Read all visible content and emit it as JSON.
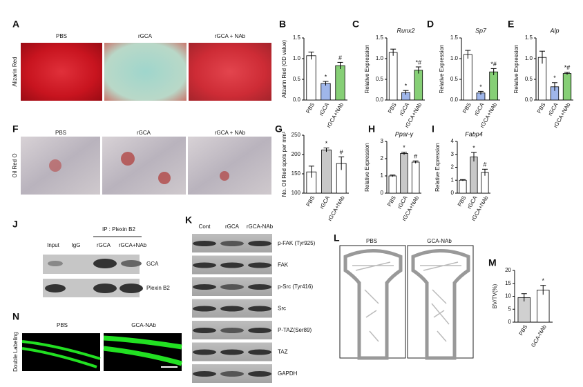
{
  "chart_data": [
    {
      "type": "bar",
      "panel": "B",
      "ylabel": "Alizarin Red (OD value)",
      "categories": [
        "PBS",
        "rGCA",
        "rGCA+NAb"
      ],
      "values": [
        1.07,
        0.4,
        0.83
      ],
      "errors": [
        0.09,
        0.05,
        0.08
      ],
      "colors": [
        "#ffffff",
        "#9fb6ea",
        "#86cf76"
      ],
      "annotations": [
        null,
        "*",
        "#"
      ],
      "ylim": [
        0,
        1.5
      ],
      "yticks": [
        {
          "value": 0,
          "label": "0.0"
        },
        {
          "value": 0.5,
          "label": "0.5"
        },
        {
          "value": 1,
          "label": "1.0"
        },
        {
          "value": 1.5,
          "label": "1.5"
        }
      ]
    },
    {
      "type": "bar",
      "panel": "C",
      "title": "Runx2",
      "ylabel": "Relative Expression",
      "categories": [
        "PBS",
        "rGCA",
        "rGCA+NAb"
      ],
      "values": [
        1.15,
        0.18,
        0.72
      ],
      "errors": [
        0.08,
        0.05,
        0.08
      ],
      "colors": [
        "#ffffff",
        "#9fb6ea",
        "#86cf76"
      ],
      "annotations": [
        null,
        "*",
        "*#"
      ],
      "ylim": [
        0,
        1.5
      ],
      "yticks": [
        {
          "value": 0,
          "label": "0.0"
        },
        {
          "value": 0.5,
          "label": "0.5"
        },
        {
          "value": 1,
          "label": "1.0"
        },
        {
          "value": 1.5,
          "label": "1.5"
        }
      ]
    },
    {
      "type": "bar",
      "panel": "D",
      "title": "Sp7",
      "ylabel": "Relative Expression",
      "categories": [
        "PBS",
        "rGCA",
        "rGCA+NAb"
      ],
      "values": [
        1.1,
        0.17,
        0.68
      ],
      "errors": [
        0.1,
        0.04,
        0.08
      ],
      "colors": [
        "#ffffff",
        "#9fb6ea",
        "#86cf76"
      ],
      "annotations": [
        null,
        "*",
        "*#"
      ],
      "ylim": [
        0,
        1.5
      ],
      "yticks": [
        {
          "value": 0,
          "label": "0.0"
        },
        {
          "value": 0.5,
          "label": "0.5"
        },
        {
          "value": 1,
          "label": "1.0"
        },
        {
          "value": 1.5,
          "label": "1.5"
        }
      ]
    },
    {
      "type": "bar",
      "panel": "E",
      "title": "Alp",
      "ylabel": "Relative Expression",
      "categories": [
        "PBS",
        "rGCA",
        "rGCA+NAb"
      ],
      "values": [
        1.03,
        0.32,
        0.64
      ],
      "errors": [
        0.15,
        0.1,
        0.03
      ],
      "colors": [
        "#ffffff",
        "#9fb6ea",
        "#86cf76"
      ],
      "annotations": [
        null,
        "*",
        "*#"
      ],
      "ylim": [
        0,
        1.5
      ],
      "yticks": [
        {
          "value": 0,
          "label": "0.0"
        },
        {
          "value": 0.5,
          "label": "0.5"
        },
        {
          "value": 1,
          "label": "1.0"
        },
        {
          "value": 1.5,
          "label": "1.5"
        }
      ]
    },
    {
      "type": "bar",
      "panel": "G",
      "ylabel": "No. Oil Red spots per mm²",
      "categories": [
        "PBS",
        "rGCA",
        "rGCA+NAb"
      ],
      "values": [
        155,
        212,
        177
      ],
      "errors": [
        15,
        5,
        17
      ],
      "colors": [
        "#ffffff",
        "#c8c8c8",
        "#ffffff"
      ],
      "annotations": [
        null,
        "*",
        "#"
      ],
      "ylim": [
        100,
        250
      ],
      "yticks": [
        100,
        150,
        200,
        250
      ]
    },
    {
      "type": "bar",
      "panel": "H",
      "title": "Ppar-γ",
      "ylabel": "Relative Expression",
      "categories": [
        "PBS",
        "rGCA",
        "rGCA+NAb"
      ],
      "values": [
        1.0,
        2.3,
        1.8
      ],
      "errors": [
        0.05,
        0.08,
        0.07
      ],
      "colors": [
        "#ffffff",
        "#c8c8c8",
        "#ffffff"
      ],
      "annotations": [
        null,
        "*",
        "#"
      ],
      "ylim": [
        0,
        3
      ],
      "yticks": [
        0,
        1,
        2,
        3
      ]
    },
    {
      "type": "bar",
      "panel": "I",
      "title": "Fabp4",
      "ylabel": "Relative Expression",
      "categories": [
        "PBS",
        "rGCA",
        "rGCA+NAb"
      ],
      "values": [
        1.0,
        2.8,
        1.6
      ],
      "errors": [
        0.05,
        0.35,
        0.25
      ],
      "colors": [
        "#ffffff",
        "#c8c8c8",
        "#ffffff"
      ],
      "annotations": [
        null,
        "*",
        "#"
      ],
      "ylim": [
        0,
        4
      ],
      "yticks": [
        0,
        1,
        2,
        3,
        4
      ]
    },
    {
      "type": "bar",
      "panel": "M",
      "ylabel": "BV/TV(%)",
      "categories": [
        "PBS",
        "GCA-NAb"
      ],
      "values": [
        9.5,
        12.4
      ],
      "errors": [
        1.5,
        1.8
      ],
      "colors": [
        "#d0d0d0",
        "#ffffff"
      ],
      "annotations": [
        null,
        "*"
      ],
      "ylim": [
        0,
        20
      ],
      "yticks": [
        0,
        5,
        10,
        15,
        20
      ]
    }
  ],
  "figure": {
    "A": {
      "letter": "A",
      "columns": [
        "PBS",
        "rGCA",
        "rGCA + NAb"
      ],
      "row_label": "Alizarin Red"
    },
    "F": {
      "letter": "F",
      "columns": [
        "PBS",
        "rGCA",
        "rGCA + NAb"
      ],
      "row_label": "Oil Red O"
    },
    "J": {
      "letter": "J",
      "ip_label": "IP : Plexin B2",
      "columns": [
        "Input",
        "IgG",
        "rGCA",
        "rGCA+NAb"
      ],
      "rows": [
        "GCA",
        "Plexin B2"
      ]
    },
    "K": {
      "letter": "K",
      "columns": [
        "Cont",
        "rGCA",
        "rGCA-NAb"
      ],
      "rows": [
        "p-FAK (Tyr925)",
        "FAK",
        "p-Src (Tyr416)",
        "Src",
        "P-TAZ(Ser89)",
        "TAZ",
        "GAPDH"
      ]
    },
    "L": {
      "letter": "L",
      "columns": [
        "PBS",
        "GCA-NAb"
      ]
    },
    "N": {
      "letter": "N",
      "columns": [
        "PBS",
        "GCA-NAb"
      ],
      "row_label": "Double Labeling"
    }
  }
}
